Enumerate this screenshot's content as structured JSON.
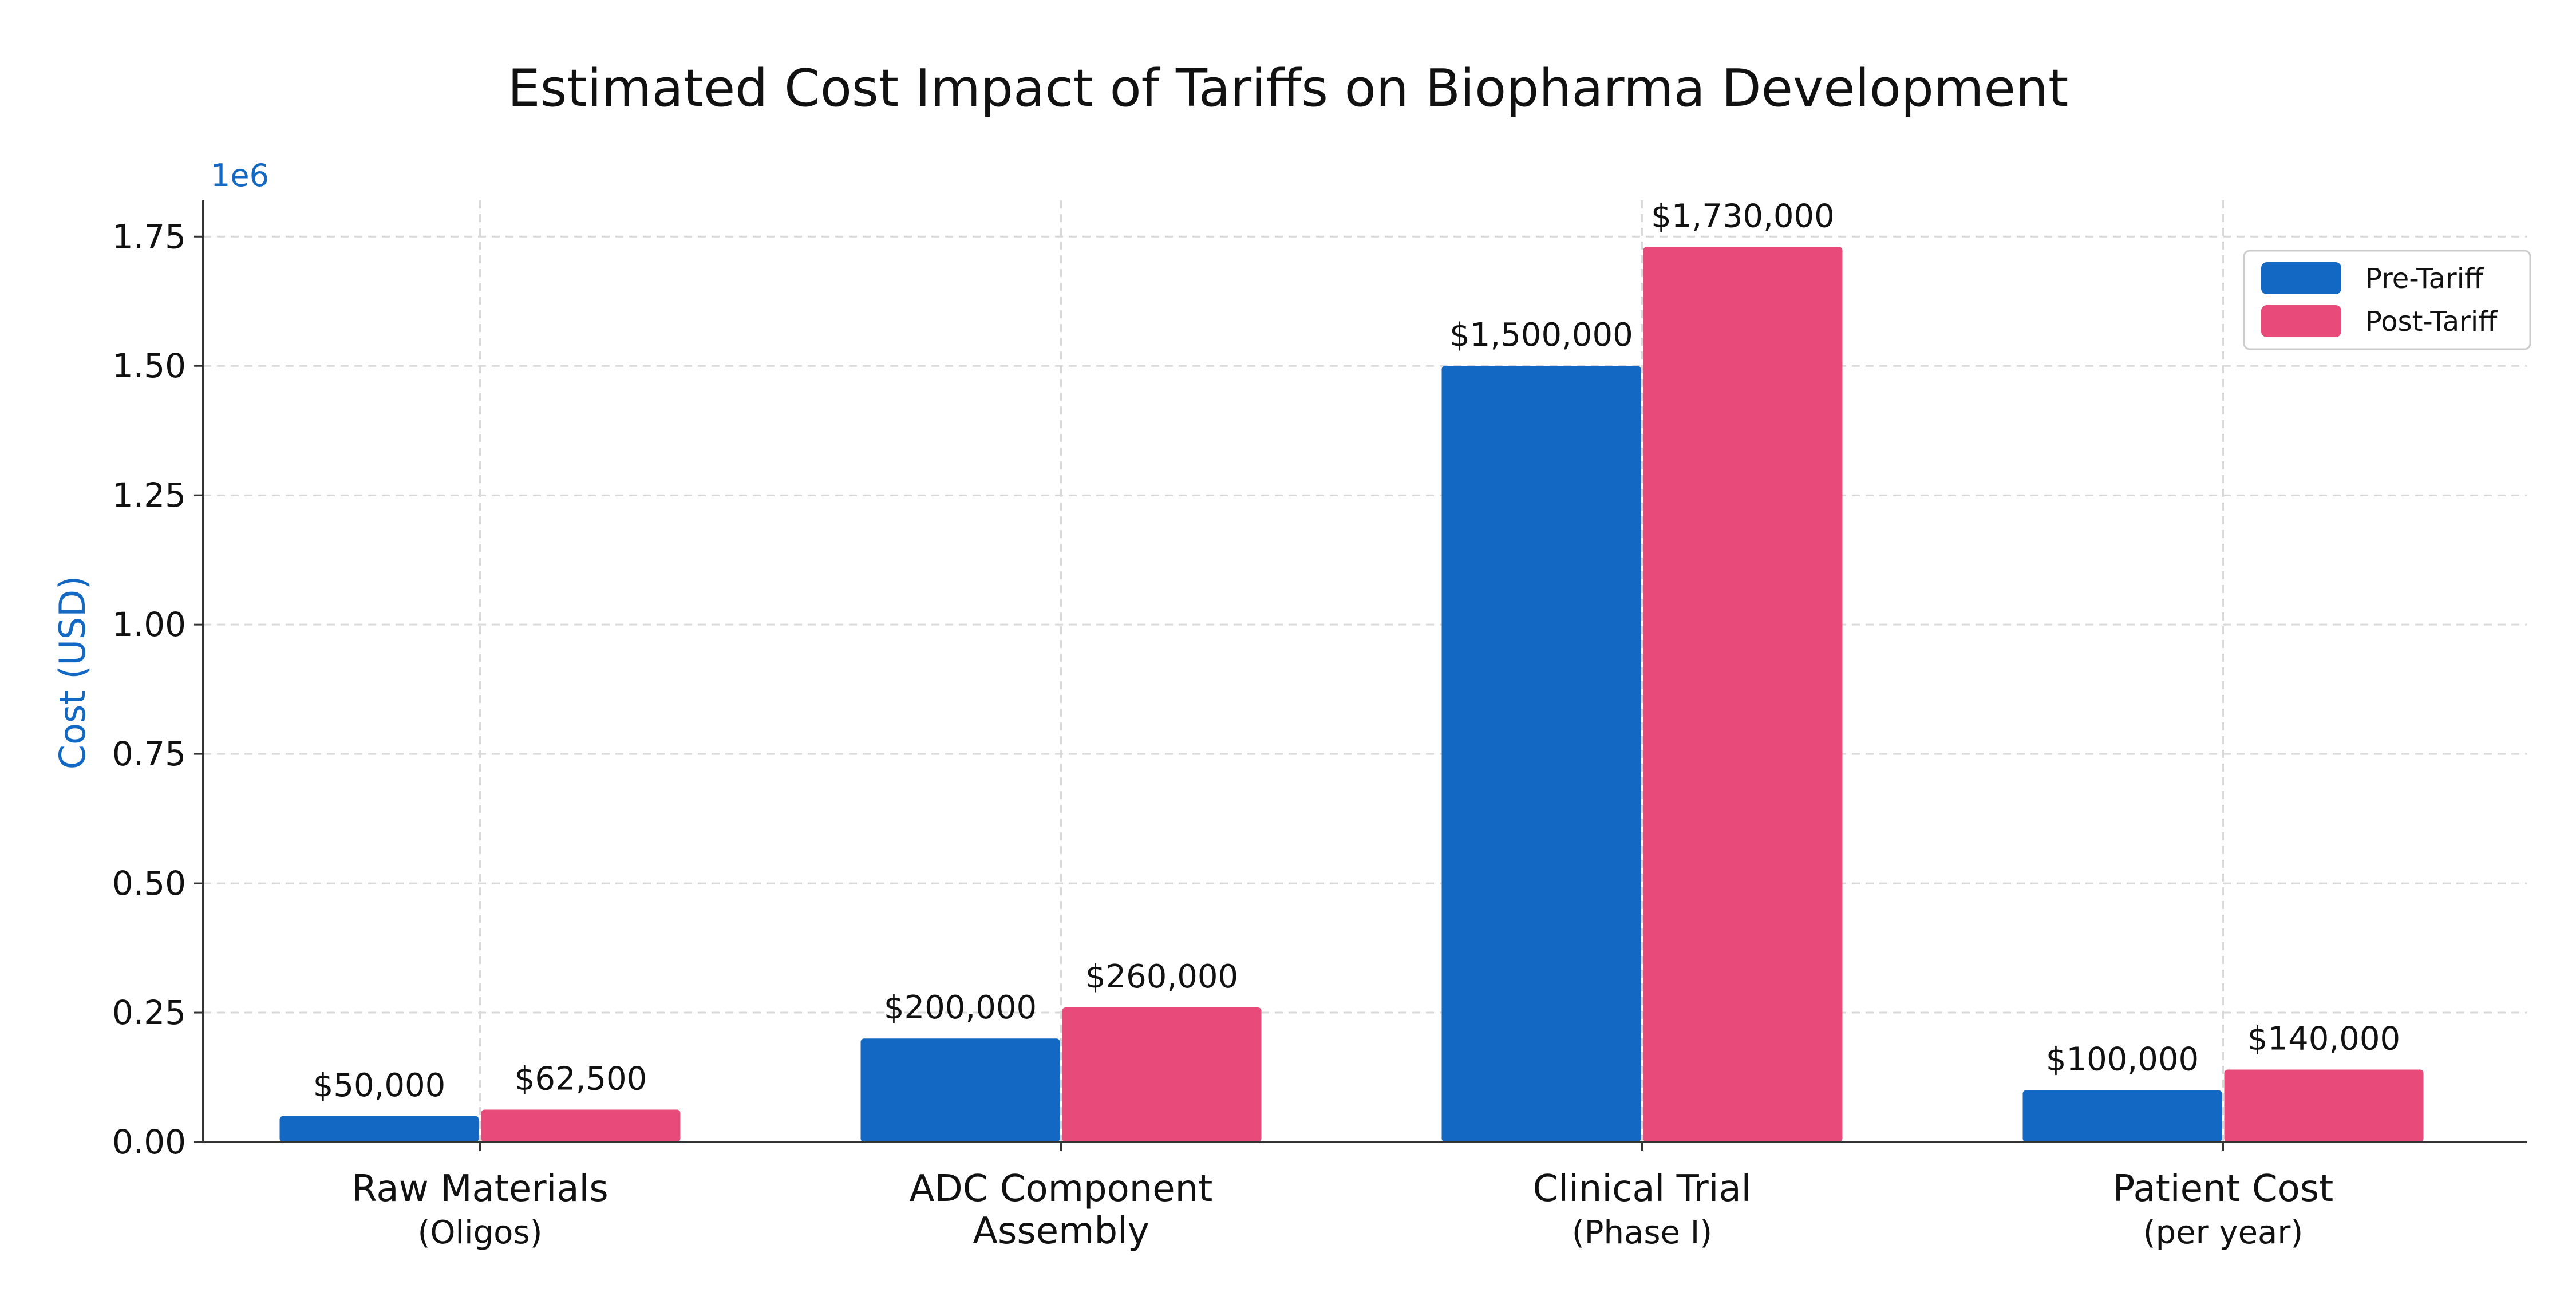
{
  "chart_data": {
    "type": "bar",
    "title": "Estimated Cost Impact of Tariffs on Biopharma Development",
    "ylabel": "Cost (USD)",
    "y_scale_note": "1e6",
    "ylim": [
      0,
      1.82
    ],
    "yticks": [
      "0.00",
      "0.25",
      "0.50",
      "0.75",
      "1.00",
      "1.25",
      "1.50",
      "1.75"
    ],
    "categories": [
      {
        "line1": "Raw Materials",
        "line2": "(Oligos)"
      },
      {
        "line1": "ADC Component",
        "line2": "Assembly"
      },
      {
        "line1": "Clinical Trial",
        "line2": "(Phase I)"
      },
      {
        "line1": "Patient Cost",
        "line2": "(per year)"
      }
    ],
    "series": [
      {
        "name": "Pre-Tariff",
        "color": "#1368c3",
        "values": [
          50000,
          200000,
          1500000,
          100000
        ],
        "labels": [
          "$50,000",
          "$200,000",
          "$1,500,000",
          "$100,000"
        ]
      },
      {
        "name": "Post-Tariff",
        "color": "#e84a7a",
        "values": [
          62500,
          260000,
          1730000,
          140000
        ],
        "labels": [
          "$62,500",
          "$260,000",
          "$1,730,000",
          "$140,000"
        ]
      }
    ],
    "grid": true,
    "legend_position": "top-right",
    "accent_color": "#1368c3"
  }
}
